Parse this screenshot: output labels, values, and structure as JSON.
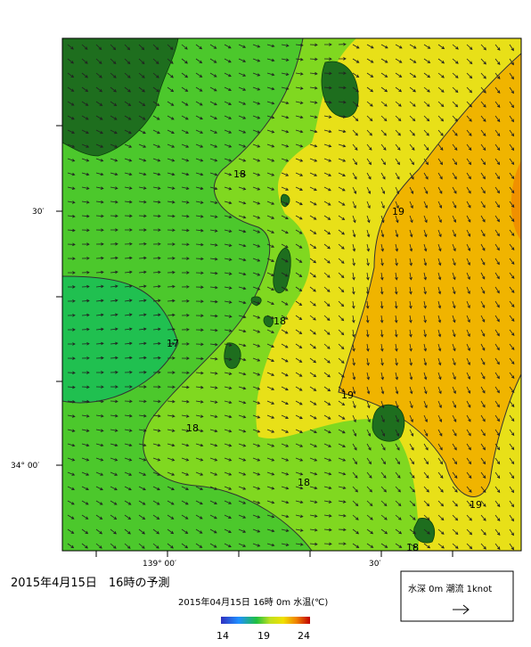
{
  "title": "2015年4月15日　16時の予測",
  "map": {
    "left_labels": [
      "30′",
      "34° 00′"
    ],
    "bottom_labels": [
      "139° 00′",
      "30′"
    ],
    "contour_labels": [
      "18",
      "19",
      "18",
      "17",
      "19",
      "18",
      "18",
      "19",
      "18"
    ]
  },
  "colorbar": {
    "caption": "2015年04月15日 16時 0m 水温(℃)",
    "labels": [
      "14",
      "19",
      "24"
    ]
  },
  "legend": {
    "text": "水深 0m 潮流 1knot"
  }
}
